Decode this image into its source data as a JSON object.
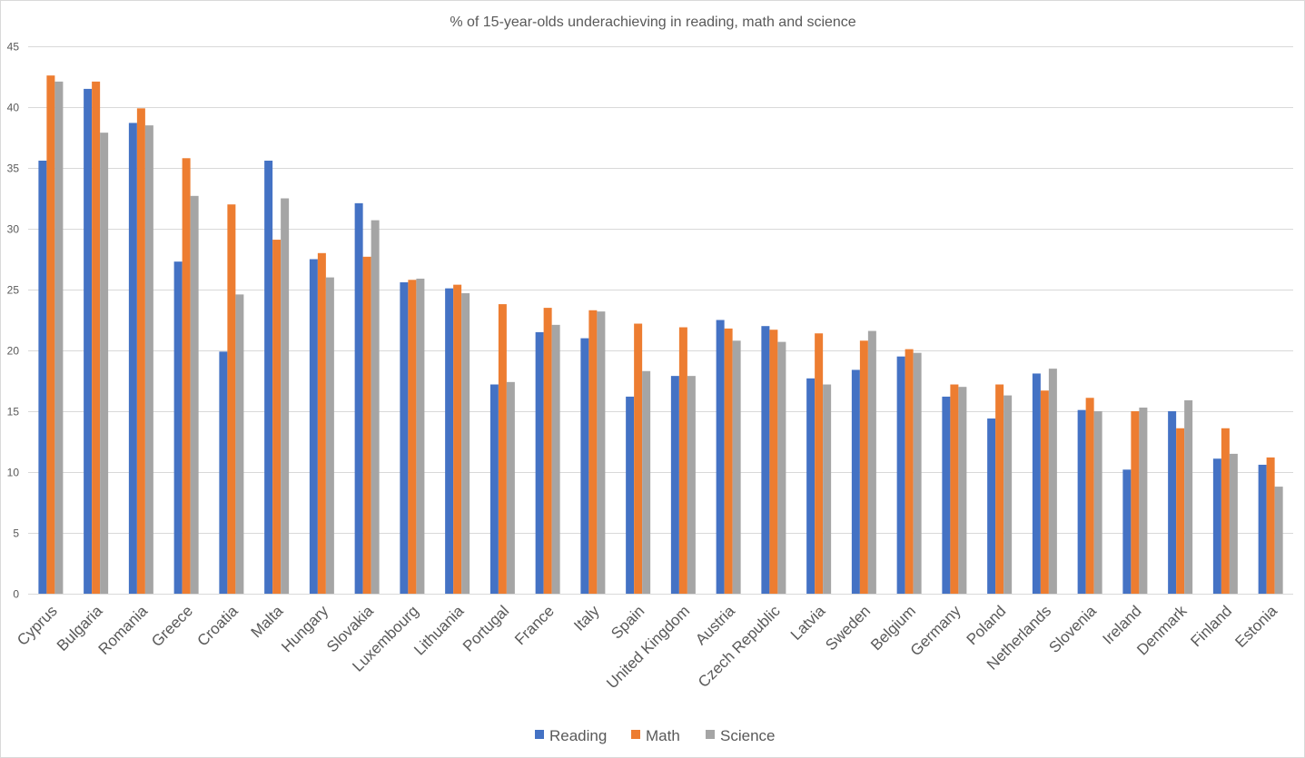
{
  "chart_data": {
    "type": "bar",
    "title": "% of 15-year-olds underachieving in reading, math and science",
    "xlabel": "",
    "ylabel": "",
    "ylim": [
      0,
      45
    ],
    "y_ticks": [
      "0",
      "5",
      "10",
      "15",
      "20",
      "25",
      "30",
      "35",
      "40",
      "45"
    ],
    "grid": true,
    "legend_position": "bottom",
    "categories": [
      "Cyprus",
      "Bulgaria",
      "Romania",
      "Greece",
      "Croatia",
      "Malta",
      "Hungary",
      "Slovakia",
      "Luxembourg",
      "Lithuania",
      "Portugal",
      "France",
      "Italy",
      "Spain",
      "United Kingdom",
      "Austria",
      "Czech Republic",
      "Latvia",
      "Sweden",
      "Belgium",
      "Germany",
      "Poland",
      "Netherlands",
      "Slovenia",
      "Ireland",
      "Denmark",
      "Finland",
      "Estonia"
    ],
    "series": [
      {
        "name": "Reading",
        "color": "#4472c4",
        "values": [
          35.6,
          41.5,
          38.7,
          27.3,
          19.9,
          35.6,
          27.5,
          32.1,
          25.6,
          25.1,
          17.2,
          21.5,
          21.0,
          16.2,
          17.9,
          22.5,
          22.0,
          17.7,
          18.4,
          19.5,
          16.2,
          14.4,
          18.1,
          15.1,
          10.2,
          15.0,
          11.1,
          10.6
        ]
      },
      {
        "name": "Math",
        "color": "#ed7d31",
        "values": [
          42.6,
          42.1,
          39.9,
          35.8,
          32.0,
          29.1,
          28.0,
          27.7,
          25.8,
          25.4,
          23.8,
          23.5,
          23.3,
          22.2,
          21.9,
          21.8,
          21.7,
          21.4,
          20.8,
          20.1,
          17.2,
          17.2,
          16.7,
          16.1,
          15.0,
          13.6,
          13.6,
          11.2
        ]
      },
      {
        "name": "Science",
        "color": "#a5a5a5",
        "values": [
          42.1,
          37.9,
          38.5,
          32.7,
          24.6,
          32.5,
          26.0,
          30.7,
          25.9,
          24.7,
          17.4,
          22.1,
          23.2,
          18.3,
          17.9,
          20.8,
          20.7,
          17.2,
          21.6,
          19.8,
          17.0,
          16.3,
          18.5,
          15.0,
          15.3,
          15.9,
          11.5,
          8.8
        ]
      }
    ]
  }
}
